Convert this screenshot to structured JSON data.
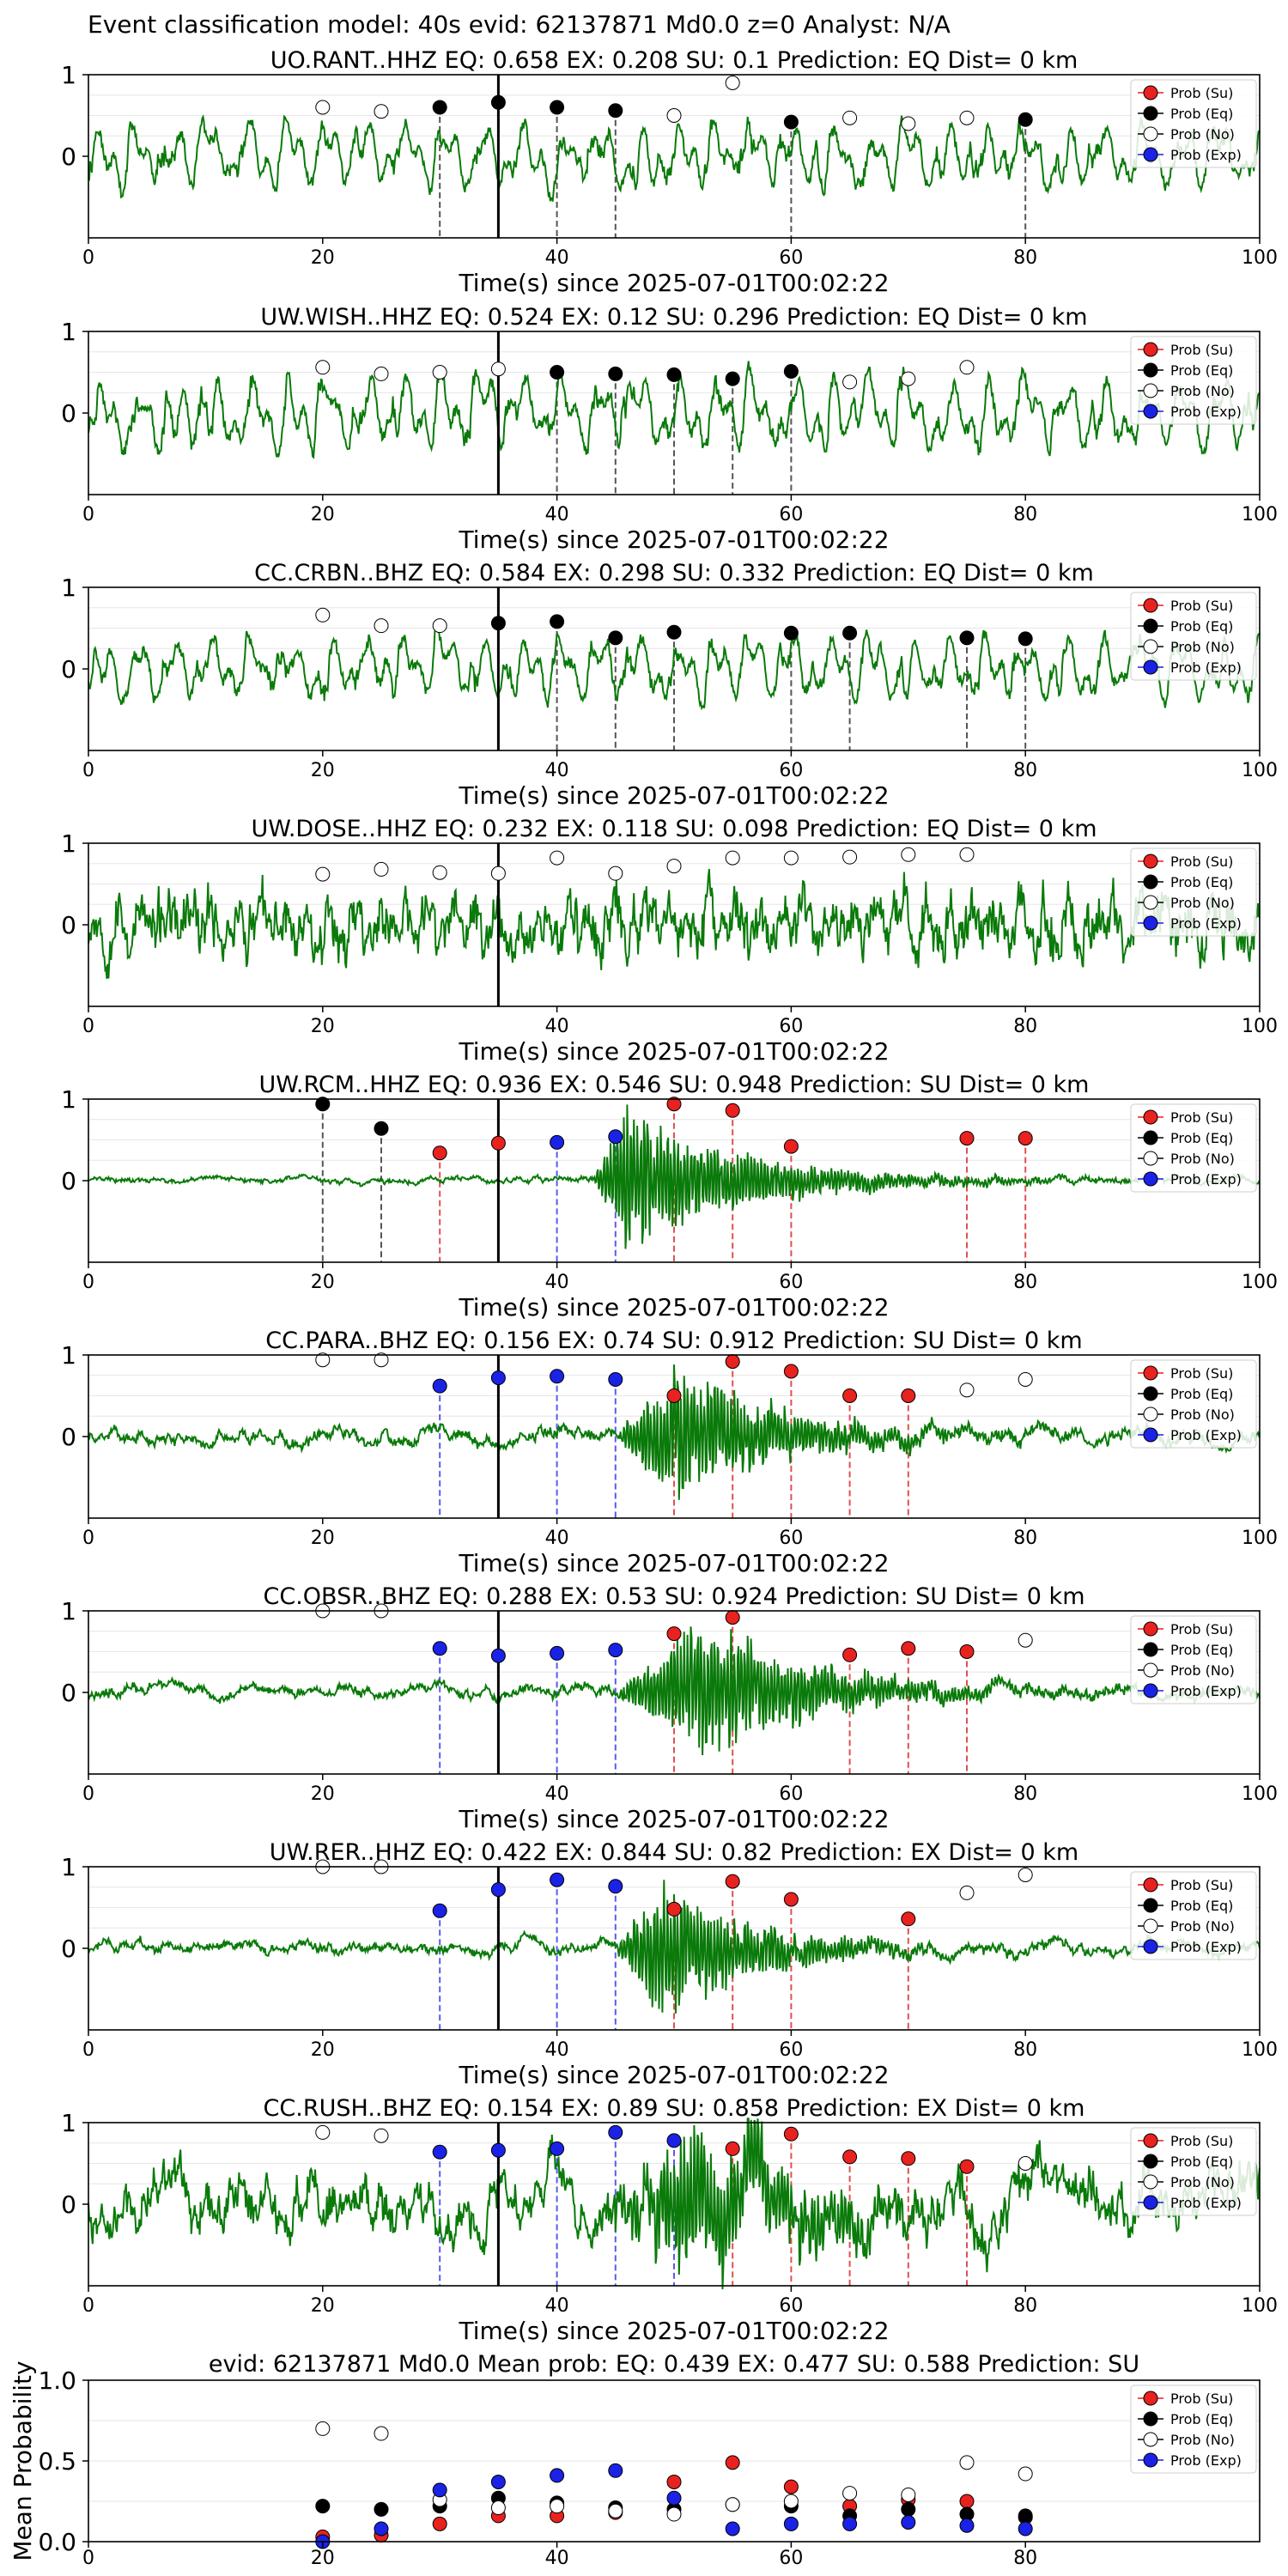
{
  "suptitle": "Event classification model: 40s evid: 62137871 Md0.0 z=0 Analyst: N/A",
  "legend_labels": [
    "Prob (Su)",
    "Prob (Eq)",
    "Prob (No)",
    "Prob (Exp)"
  ],
  "colors": {
    "su": "#e8221f",
    "eq": "#000000",
    "no": "#ffffff",
    "exp": "#1a22e6",
    "trace": "#0a7a0a",
    "vline_su": "#e05050",
    "vline_eq": "#555555",
    "vline_exp": "#5a5aee"
  },
  "chart_data": [
    {
      "type": "line",
      "station": "UO.RANT..HHZ",
      "title": "UO.RANT..HHZ   EQ: 0.658  EX: 0.208  SU: 0.1   Prediction: EQ    Dist= 0 km",
      "xlabel": "Time(s) since 2025-07-01T00:02:22",
      "xlim": [
        0,
        100
      ],
      "ylim": [
        -1,
        1
      ],
      "xticks": [
        "0",
        "20",
        "40",
        "60",
        "80",
        "100"
      ],
      "yticks": [
        "1",
        "0"
      ],
      "trace": {
        "style": "noisy",
        "amplitude": 0.45,
        "seed": 11
      },
      "arrival_time": 35,
      "points": [
        {
          "x": 20,
          "y": 0.6,
          "cls": "no"
        },
        {
          "x": 25,
          "y": 0.55,
          "cls": "no"
        },
        {
          "x": 30,
          "y": 0.6,
          "cls": "eq"
        },
        {
          "x": 35,
          "y": 0.66,
          "cls": "eq"
        },
        {
          "x": 40,
          "y": 0.6,
          "cls": "eq"
        },
        {
          "x": 45,
          "y": 0.56,
          "cls": "eq"
        },
        {
          "x": 50,
          "y": 0.5,
          "cls": "no"
        },
        {
          "x": 55,
          "y": 0.9,
          "cls": "no"
        },
        {
          "x": 60,
          "y": 0.42,
          "cls": "eq"
        },
        {
          "x": 65,
          "y": 0.47,
          "cls": "no"
        },
        {
          "x": 70,
          "y": 0.4,
          "cls": "no"
        },
        {
          "x": 75,
          "y": 0.47,
          "cls": "no"
        },
        {
          "x": 80,
          "y": 0.45,
          "cls": "eq"
        }
      ]
    },
    {
      "type": "line",
      "station": "UW.WISH..HHZ",
      "title": "UW.WISH..HHZ   EQ: 0.524  EX: 0.12  SU: 0.296   Prediction: EQ    Dist= 0 km",
      "xlabel": "Time(s) since 2025-07-01T00:02:22",
      "xlim": [
        0,
        100
      ],
      "ylim": [
        -1,
        1
      ],
      "xticks": [
        "0",
        "20",
        "40",
        "60",
        "80",
        "100"
      ],
      "yticks": [
        "1",
        "0"
      ],
      "trace": {
        "style": "noisy",
        "amplitude": 0.5,
        "seed": 23
      },
      "arrival_time": 35,
      "points": [
        {
          "x": 20,
          "y": 0.56,
          "cls": "no"
        },
        {
          "x": 25,
          "y": 0.48,
          "cls": "no"
        },
        {
          "x": 30,
          "y": 0.5,
          "cls": "no"
        },
        {
          "x": 35,
          "y": 0.54,
          "cls": "no"
        },
        {
          "x": 40,
          "y": 0.5,
          "cls": "eq"
        },
        {
          "x": 45,
          "y": 0.48,
          "cls": "eq"
        },
        {
          "x": 50,
          "y": 0.47,
          "cls": "eq"
        },
        {
          "x": 55,
          "y": 0.42,
          "cls": "eq"
        },
        {
          "x": 60,
          "y": 0.51,
          "cls": "eq"
        },
        {
          "x": 65,
          "y": 0.38,
          "cls": "no"
        },
        {
          "x": 70,
          "y": 0.42,
          "cls": "no"
        },
        {
          "x": 75,
          "y": 0.56,
          "cls": "no"
        }
      ]
    },
    {
      "type": "line",
      "station": "CC.CRBN..BHZ",
      "title": "CC.CRBN..BHZ   EQ: 0.584  EX: 0.298  SU: 0.332   Prediction: EQ    Dist= 0 km",
      "xlabel": "Time(s) since 2025-07-01T00:02:22",
      "xlim": [
        0,
        100
      ],
      "ylim": [
        -1,
        1
      ],
      "xticks": [
        "0",
        "20",
        "40",
        "60",
        "80",
        "100"
      ],
      "yticks": [
        "1",
        "0"
      ],
      "trace": {
        "style": "noisy",
        "amplitude": 0.45,
        "seed": 37
      },
      "arrival_time": 35,
      "points": [
        {
          "x": 20,
          "y": 0.66,
          "cls": "no"
        },
        {
          "x": 25,
          "y": 0.53,
          "cls": "no"
        },
        {
          "x": 30,
          "y": 0.53,
          "cls": "no"
        },
        {
          "x": 35,
          "y": 0.56,
          "cls": "eq"
        },
        {
          "x": 40,
          "y": 0.58,
          "cls": "eq"
        },
        {
          "x": 45,
          "y": 0.38,
          "cls": "eq"
        },
        {
          "x": 50,
          "y": 0.45,
          "cls": "eq"
        },
        {
          "x": 60,
          "y": 0.44,
          "cls": "eq"
        },
        {
          "x": 65,
          "y": 0.44,
          "cls": "eq"
        },
        {
          "x": 75,
          "y": 0.38,
          "cls": "eq"
        },
        {
          "x": 80,
          "y": 0.37,
          "cls": "eq"
        }
      ]
    },
    {
      "type": "line",
      "station": "UW.DOSE..HHZ",
      "title": "UW.DOSE..HHZ   EQ: 0.232  EX: 0.118  SU: 0.098   Prediction: EQ    Dist= 0 km",
      "xlabel": "Time(s) since 2025-07-01T00:02:22",
      "xlim": [
        0,
        100
      ],
      "ylim": [
        -1,
        1
      ],
      "xticks": [
        "0",
        "20",
        "40",
        "60",
        "80",
        "100"
      ],
      "yticks": [
        "1",
        "0"
      ],
      "trace": {
        "style": "dense",
        "amplitude": 0.7,
        "seed": 53
      },
      "arrival_time": 35,
      "points": [
        {
          "x": 20,
          "y": 0.62,
          "cls": "no"
        },
        {
          "x": 25,
          "y": 0.68,
          "cls": "no"
        },
        {
          "x": 30,
          "y": 0.64,
          "cls": "no"
        },
        {
          "x": 35,
          "y": 0.63,
          "cls": "no"
        },
        {
          "x": 40,
          "y": 0.82,
          "cls": "no"
        },
        {
          "x": 45,
          "y": 0.63,
          "cls": "no"
        },
        {
          "x": 50,
          "y": 0.72,
          "cls": "no"
        },
        {
          "x": 55,
          "y": 0.82,
          "cls": "no"
        },
        {
          "x": 60,
          "y": 0.82,
          "cls": "no"
        },
        {
          "x": 65,
          "y": 0.83,
          "cls": "no"
        },
        {
          "x": 70,
          "y": 0.86,
          "cls": "no"
        },
        {
          "x": 75,
          "y": 0.86,
          "cls": "no"
        }
      ]
    },
    {
      "type": "line",
      "station": "UW.RCM..HHZ",
      "title": "UW.RCM..HHZ   EQ: 0.936  EX: 0.546  SU: 0.948   Prediction: SU    Dist= 0 km",
      "xlabel": "Time(s) since 2025-07-01T00:02:22",
      "xlim": [
        0,
        100
      ],
      "ylim": [
        -1,
        1
      ],
      "xticks": [
        "0",
        "20",
        "40",
        "60",
        "80",
        "100"
      ],
      "yticks": [
        "1",
        "0"
      ],
      "trace": {
        "style": "burst",
        "amplitude": 0.95,
        "onset": 43,
        "peak": 46,
        "decay": 10,
        "noise": 0.02,
        "seed": 71
      },
      "arrival_time": 35,
      "points": [
        {
          "x": 20,
          "y": 0.94,
          "cls": "eq"
        },
        {
          "x": 25,
          "y": 0.64,
          "cls": "eq"
        },
        {
          "x": 30,
          "y": 0.34,
          "cls": "su"
        },
        {
          "x": 35,
          "y": 0.46,
          "cls": "su"
        },
        {
          "x": 40,
          "y": 0.47,
          "cls": "exp"
        },
        {
          "x": 45,
          "y": 0.54,
          "cls": "exp"
        },
        {
          "x": 50,
          "y": 0.94,
          "cls": "su"
        },
        {
          "x": 55,
          "y": 0.86,
          "cls": "su"
        },
        {
          "x": 60,
          "y": 0.42,
          "cls": "su"
        },
        {
          "x": 75,
          "y": 0.52,
          "cls": "su"
        },
        {
          "x": 80,
          "y": 0.52,
          "cls": "su"
        }
      ]
    },
    {
      "type": "line",
      "station": "CC.PARA..BHZ",
      "title": "CC.PARA..BHZ   EQ: 0.156  EX: 0.74  SU: 0.912   Prediction: SU    Dist= 0 km",
      "xlabel": "Time(s) since 2025-07-01T00:02:22",
      "xlim": [
        0,
        100
      ],
      "ylim": [
        -1,
        1
      ],
      "xticks": [
        "0",
        "20",
        "40",
        "60",
        "80",
        "100"
      ],
      "yticks": [
        "1",
        "0"
      ],
      "trace": {
        "style": "burst",
        "amplitude": 0.9,
        "onset": 45,
        "peak": 50,
        "decay": 9,
        "noise": 0.05,
        "seed": 89
      },
      "arrival_time": 35,
      "points": [
        {
          "x": 20,
          "y": 0.94,
          "cls": "no"
        },
        {
          "x": 25,
          "y": 0.94,
          "cls": "no"
        },
        {
          "x": 30,
          "y": 0.62,
          "cls": "exp"
        },
        {
          "x": 35,
          "y": 0.72,
          "cls": "exp"
        },
        {
          "x": 40,
          "y": 0.74,
          "cls": "exp"
        },
        {
          "x": 45,
          "y": 0.7,
          "cls": "exp"
        },
        {
          "x": 50,
          "y": 0.5,
          "cls": "su"
        },
        {
          "x": 55,
          "y": 0.92,
          "cls": "su"
        },
        {
          "x": 60,
          "y": 0.8,
          "cls": "su"
        },
        {
          "x": 65,
          "y": 0.5,
          "cls": "su"
        },
        {
          "x": 70,
          "y": 0.5,
          "cls": "su"
        },
        {
          "x": 75,
          "y": 0.57,
          "cls": "no"
        },
        {
          "x": 80,
          "y": 0.7,
          "cls": "no"
        }
      ]
    },
    {
      "type": "line",
      "station": "CC.OBSR..BHZ",
      "title": "CC.OBSR..BHZ   EQ: 0.288  EX: 0.53  SU: 0.924   Prediction: SU    Dist= 0 km",
      "xlabel": "Time(s) since 2025-07-01T00:02:22",
      "xlim": [
        0,
        100
      ],
      "ylim": [
        -1,
        1
      ],
      "xticks": [
        "0",
        "20",
        "40",
        "60",
        "80",
        "100"
      ],
      "yticks": [
        "1",
        "0"
      ],
      "trace": {
        "style": "burst",
        "amplitude": 0.95,
        "onset": 45,
        "peak": 53,
        "decay": 9,
        "noise": 0.04,
        "seed": 97
      },
      "arrival_time": 35,
      "points": [
        {
          "x": 20,
          "y": 1.0,
          "cls": "no"
        },
        {
          "x": 25,
          "y": 1.0,
          "cls": "no"
        },
        {
          "x": 30,
          "y": 0.54,
          "cls": "exp"
        },
        {
          "x": 35,
          "y": 0.45,
          "cls": "exp"
        },
        {
          "x": 40,
          "y": 0.48,
          "cls": "exp"
        },
        {
          "x": 45,
          "y": 0.52,
          "cls": "exp"
        },
        {
          "x": 50,
          "y": 0.72,
          "cls": "su"
        },
        {
          "x": 55,
          "y": 0.92,
          "cls": "su"
        },
        {
          "x": 65,
          "y": 0.46,
          "cls": "su"
        },
        {
          "x": 70,
          "y": 0.54,
          "cls": "su"
        },
        {
          "x": 75,
          "y": 0.5,
          "cls": "su"
        },
        {
          "x": 80,
          "y": 0.64,
          "cls": "no"
        }
      ]
    },
    {
      "type": "line",
      "station": "UW.RER..HHZ",
      "title": "UW.RER..HHZ   EQ: 0.422  EX: 0.844  SU: 0.82   Prediction: EX    Dist= 0 km",
      "xlabel": "Time(s) since 2025-07-01T00:02:22",
      "xlim": [
        0,
        100
      ],
      "ylim": [
        -1,
        1
      ],
      "xticks": [
        "0",
        "20",
        "40",
        "60",
        "80",
        "100"
      ],
      "yticks": [
        "1",
        "0"
      ],
      "trace": {
        "style": "burst",
        "amplitude": 0.95,
        "onset": 45,
        "peak": 49,
        "decay": 8,
        "noise": 0.04,
        "seed": 103
      },
      "arrival_time": 35,
      "points": [
        {
          "x": 20,
          "y": 1.0,
          "cls": "no"
        },
        {
          "x": 25,
          "y": 1.0,
          "cls": "no"
        },
        {
          "x": 30,
          "y": 0.46,
          "cls": "exp"
        },
        {
          "x": 35,
          "y": 0.72,
          "cls": "exp"
        },
        {
          "x": 40,
          "y": 0.84,
          "cls": "exp"
        },
        {
          "x": 45,
          "y": 0.76,
          "cls": "exp"
        },
        {
          "x": 50,
          "y": 0.48,
          "cls": "su"
        },
        {
          "x": 55,
          "y": 0.82,
          "cls": "su"
        },
        {
          "x": 60,
          "y": 0.6,
          "cls": "su"
        },
        {
          "x": 70,
          "y": 0.36,
          "cls": "su"
        },
        {
          "x": 75,
          "y": 0.68,
          "cls": "no"
        },
        {
          "x": 80,
          "y": 0.9,
          "cls": "no"
        }
      ]
    },
    {
      "type": "line",
      "station": "CC.RUSH..BHZ",
      "title": "CC.RUSH..BHZ   EQ: 0.154  EX: 0.89  SU: 0.858   Prediction: EX    Dist= 0 km",
      "xlabel": "Time(s) since 2025-07-01T00:02:22",
      "xlim": [
        0,
        100
      ],
      "ylim": [
        -1,
        1
      ],
      "xticks": [
        "0",
        "20",
        "40",
        "60",
        "80",
        "100"
      ],
      "yticks": [
        "1",
        "0"
      ],
      "trace": {
        "style": "burst",
        "amplitude": 0.9,
        "onset": 44,
        "peak": 52,
        "decay": 10,
        "noise": 0.18,
        "seed": 127
      },
      "arrival_time": 35,
      "points": [
        {
          "x": 20,
          "y": 0.88,
          "cls": "no"
        },
        {
          "x": 25,
          "y": 0.84,
          "cls": "no"
        },
        {
          "x": 30,
          "y": 0.64,
          "cls": "exp"
        },
        {
          "x": 35,
          "y": 0.66,
          "cls": "exp"
        },
        {
          "x": 40,
          "y": 0.68,
          "cls": "exp"
        },
        {
          "x": 45,
          "y": 0.88,
          "cls": "exp"
        },
        {
          "x": 50,
          "y": 0.78,
          "cls": "exp"
        },
        {
          "x": 55,
          "y": 0.68,
          "cls": "su"
        },
        {
          "x": 60,
          "y": 0.86,
          "cls": "su"
        },
        {
          "x": 65,
          "y": 0.58,
          "cls": "su"
        },
        {
          "x": 70,
          "y": 0.56,
          "cls": "su"
        },
        {
          "x": 75,
          "y": 0.46,
          "cls": "su"
        },
        {
          "x": 80,
          "y": 0.5,
          "cls": "no"
        }
      ]
    },
    {
      "type": "scatter",
      "station": "mean",
      "title": "evid: 62137871  Md0.0    Mean prob:    EQ: 0.439  EX: 0.477  SU: 0.588   Prediction: SU",
      "ylabel": "Mean Probability",
      "xlim": [
        0,
        100
      ],
      "ylim": [
        0,
        1
      ],
      "xticks": [
        "0",
        "20",
        "40",
        "60",
        "80"
      ],
      "yticks": [
        "1.0",
        "0.5",
        "0.0"
      ],
      "x": [
        20,
        25,
        30,
        35,
        40,
        45,
        50,
        55,
        60,
        65,
        70,
        75,
        80
      ],
      "series": [
        {
          "name": "Prob (Su)",
          "cls": "su",
          "values": [
            0.03,
            0.04,
            0.11,
            0.16,
            0.16,
            0.18,
            0.37,
            0.49,
            0.34,
            0.22,
            0.26,
            0.25,
            0.15
          ]
        },
        {
          "name": "Prob (Eq)",
          "cls": "eq",
          "values": [
            0.22,
            0.2,
            0.22,
            0.27,
            0.24,
            0.21,
            0.2,
            0.23,
            0.22,
            0.16,
            0.2,
            0.17,
            0.16
          ]
        },
        {
          "name": "Prob (No)",
          "cls": "no",
          "values": [
            0.7,
            0.67,
            0.26,
            0.21,
            0.22,
            0.19,
            0.17,
            0.23,
            0.25,
            0.3,
            0.29,
            0.49,
            0.42
          ]
        },
        {
          "name": "Prob (Exp)",
          "cls": "exp",
          "values": [
            0.0,
            0.08,
            0.32,
            0.37,
            0.41,
            0.44,
            0.27,
            0.08,
            0.11,
            0.11,
            0.12,
            0.1,
            0.08
          ]
        }
      ]
    }
  ]
}
